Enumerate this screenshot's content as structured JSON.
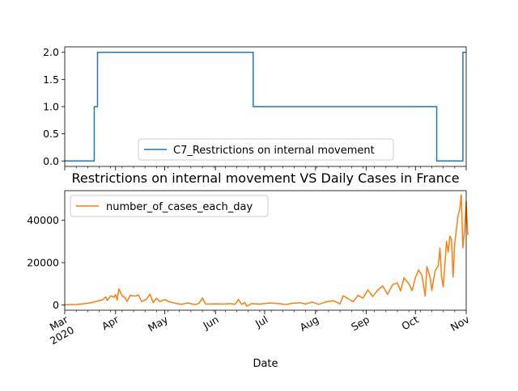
{
  "chart_data": [
    {
      "type": "line",
      "title": "",
      "xlabel": "",
      "ylabel": "",
      "ylim": [
        -0.1,
        2.1
      ],
      "y_ticks": [
        "0.0",
        "0.5",
        "1.0",
        "1.5",
        "2.0"
      ],
      "y_tick_values": [
        0,
        0.5,
        1.0,
        1.5,
        2.0
      ],
      "legend_position": "lower-center",
      "grid": false,
      "series": [
        {
          "name": "C7_Restrictions on internal movement",
          "color": "#1f77b4",
          "points": [
            [
              "2020-03-01",
              0
            ],
            [
              "2020-03-19",
              0
            ],
            [
              "2020-03-19",
              1
            ],
            [
              "2020-03-21",
              1
            ],
            [
              "2020-03-21",
              2
            ],
            [
              "2020-06-24",
              2
            ],
            [
              "2020-06-24",
              1
            ],
            [
              "2020-10-14",
              1
            ],
            [
              "2020-10-14",
              0
            ],
            [
              "2020-10-30",
              0
            ],
            [
              "2020-10-30",
              2
            ],
            [
              "2020-11-01",
              2
            ]
          ]
        }
      ]
    },
    {
      "type": "line",
      "title": "Restrictions on internal movement VS Daily Cases in France",
      "xlabel": "Date",
      "ylabel": "",
      "ylim": [
        -2500,
        54000
      ],
      "y_ticks": [
        "0",
        "20000",
        "40000"
      ],
      "y_tick_values": [
        0,
        20000,
        40000
      ],
      "legend_position": "top-left",
      "grid": false,
      "x_tick_labels": [
        "Mar\n2020",
        "Apr",
        "May",
        "Jun",
        "Jul",
        "Aug",
        "Sep",
        "Oct",
        "Nov"
      ],
      "x_tick_dates": [
        "2020-03-01",
        "2020-04-01",
        "2020-05-01",
        "2020-06-01",
        "2020-07-01",
        "2020-08-01",
        "2020-09-01",
        "2020-10-01",
        "2020-11-01"
      ],
      "series": [
        {
          "name": "number_of_cases_each_day",
          "color": "#ff7f0e",
          "points": [
            [
              "2020-03-01",
              100
            ],
            [
              "2020-03-08",
              200
            ],
            [
              "2020-03-12",
              500
            ],
            [
              "2020-03-16",
              900
            ],
            [
              "2020-03-20",
              1600
            ],
            [
              "2020-03-24",
              2400
            ],
            [
              "2020-03-26",
              3800
            ],
            [
              "2020-03-27",
              2100
            ],
            [
              "2020-03-29",
              4300
            ],
            [
              "2020-03-31",
              3600
            ],
            [
              "2020-04-01",
              4900
            ],
            [
              "2020-04-02",
              2300
            ],
            [
              "2020-04-03",
              7600
            ],
            [
              "2020-04-05",
              4300
            ],
            [
              "2020-04-07",
              3300
            ],
            [
              "2020-04-08",
              1600
            ],
            [
              "2020-04-10",
              4500
            ],
            [
              "2020-04-13",
              4200
            ],
            [
              "2020-04-15",
              4700
            ],
            [
              "2020-04-17",
              1500
            ],
            [
              "2020-04-20",
              2800
            ],
            [
              "2020-04-22",
              5100
            ],
            [
              "2020-04-24",
              1100
            ],
            [
              "2020-04-26",
              3200
            ],
            [
              "2020-04-28",
              1600
            ],
            [
              "2020-05-01",
              2500
            ],
            [
              "2020-05-04",
              1400
            ],
            [
              "2020-05-08",
              700
            ],
            [
              "2020-05-11",
              300
            ],
            [
              "2020-05-15",
              900
            ],
            [
              "2020-05-18",
              400
            ],
            [
              "2020-05-20",
              200
            ],
            [
              "2020-05-22",
              800
            ],
            [
              "2020-05-24",
              3300
            ],
            [
              "2020-05-26",
              400
            ],
            [
              "2020-06-01",
              500
            ],
            [
              "2020-06-06",
              400
            ],
            [
              "2020-06-10",
              600
            ],
            [
              "2020-06-13",
              300
            ],
            [
              "2020-06-15",
              2600
            ],
            [
              "2020-06-17",
              200
            ],
            [
              "2020-06-19",
              1200
            ],
            [
              "2020-06-20",
              -600
            ],
            [
              "2020-06-23",
              600
            ],
            [
              "2020-06-28",
              400
            ],
            [
              "2020-07-04",
              900
            ],
            [
              "2020-07-10",
              600
            ],
            [
              "2020-07-14",
              200
            ],
            [
              "2020-07-18",
              800
            ],
            [
              "2020-07-23",
              1000
            ],
            [
              "2020-07-26",
              400
            ],
            [
              "2020-07-30",
              1400
            ],
            [
              "2020-08-03",
              300
            ],
            [
              "2020-08-08",
              1500
            ],
            [
              "2020-08-12",
              2000
            ],
            [
              "2020-08-16",
              500
            ],
            [
              "2020-08-18",
              4300
            ],
            [
              "2020-08-21",
              2900
            ],
            [
              "2020-08-24",
              1500
            ],
            [
              "2020-08-27",
              4500
            ],
            [
              "2020-08-30",
              3200
            ],
            [
              "2020-09-02",
              7100
            ],
            [
              "2020-09-05",
              4000
            ],
            [
              "2020-09-08",
              7000
            ],
            [
              "2020-09-11",
              9000
            ],
            [
              "2020-09-14",
              5000
            ],
            [
              "2020-09-17",
              9500
            ],
            [
              "2020-09-20",
              10400
            ],
            [
              "2020-09-22",
              6600
            ],
            [
              "2020-09-24",
              12800
            ],
            [
              "2020-09-27",
              10000
            ],
            [
              "2020-09-29",
              6800
            ],
            [
              "2020-10-01",
              13000
            ],
            [
              "2020-10-03",
              16500
            ],
            [
              "2020-10-05",
              13800
            ],
            [
              "2020-10-07",
              4200
            ],
            [
              "2020-10-08",
              18100
            ],
            [
              "2020-10-10",
              13000
            ],
            [
              "2020-10-11",
              6800
            ],
            [
              "2020-10-13",
              16000
            ],
            [
              "2020-10-15",
              18600
            ],
            [
              "2020-10-16",
              26900
            ],
            [
              "2020-10-17",
              13000
            ],
            [
              "2020-10-18",
              8500
            ],
            [
              "2020-10-20",
              30000
            ],
            [
              "2020-10-21",
              25000
            ],
            [
              "2020-10-22",
              32500
            ],
            [
              "2020-10-23",
              31000
            ],
            [
              "2020-10-24",
              13200
            ],
            [
              "2020-10-25",
              29000
            ],
            [
              "2020-10-27",
              42000
            ],
            [
              "2020-10-28",
              45000
            ],
            [
              "2020-10-29",
              52000
            ],
            [
              "2020-10-30",
              27000
            ],
            [
              "2020-10-31",
              35000
            ],
            [
              "2020-11-01",
              49000
            ],
            [
              "2020-11-02",
              33000
            ]
          ]
        }
      ]
    }
  ]
}
